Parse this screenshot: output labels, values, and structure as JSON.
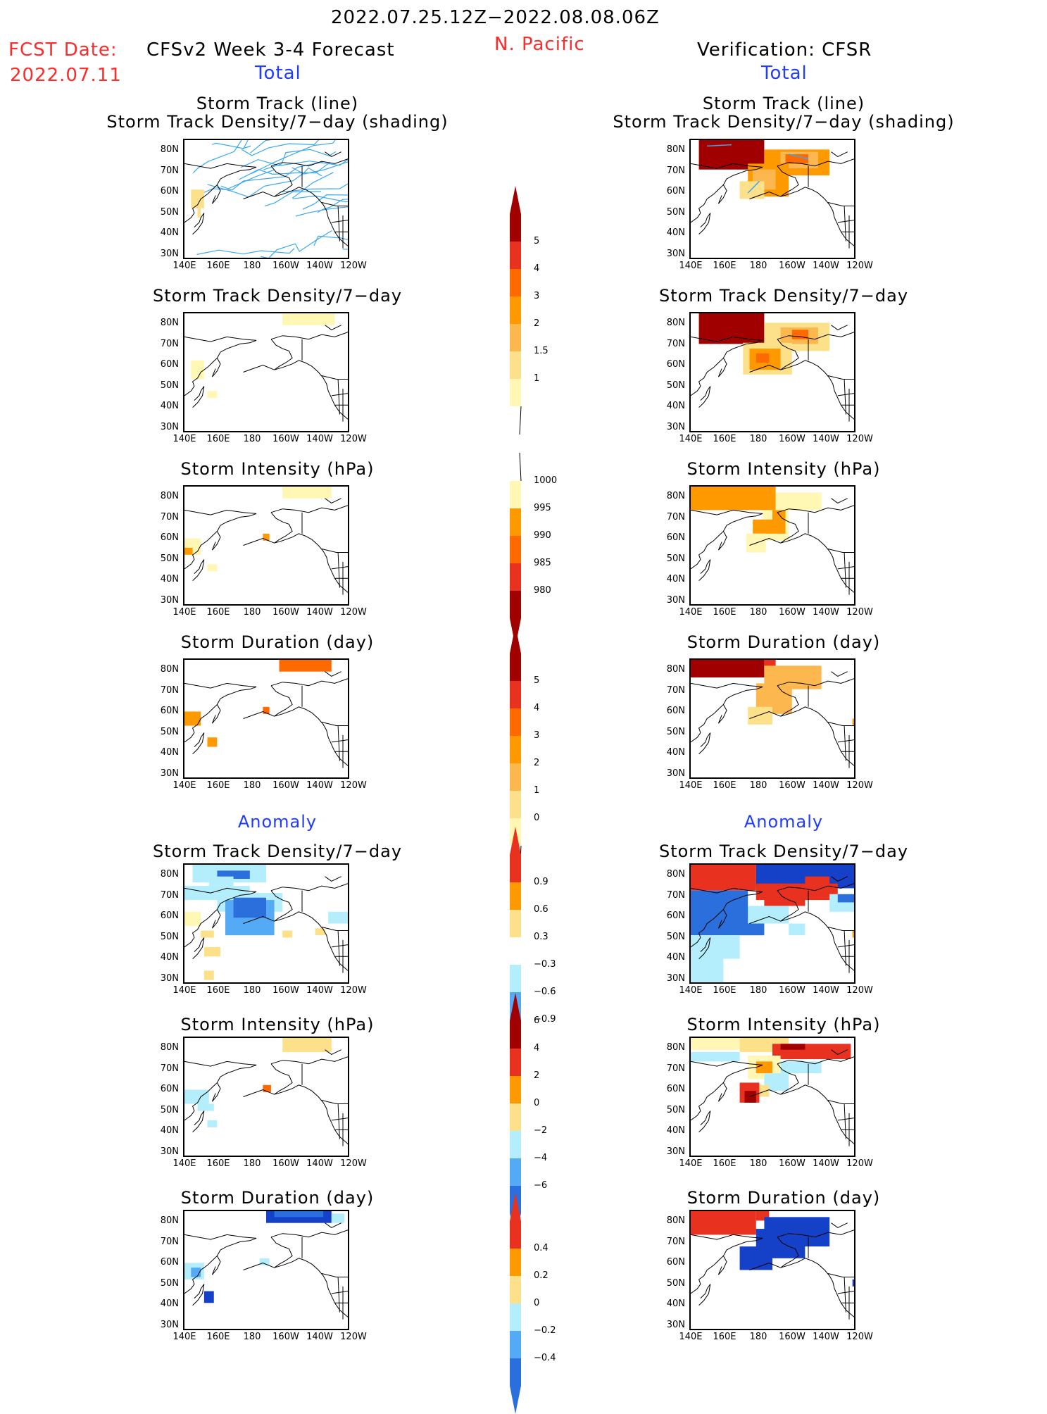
{
  "header": {
    "date_range": "2022.07.25.12Z−2022.08.08.06Z",
    "fcst_label": "FCST Date:",
    "fcst_date": "2022.07.11",
    "left_title": "CFSv2 Week 3-4 Forecast",
    "region": "N. Pacific",
    "right_title": "Verification: CFSR",
    "left_total": "Total",
    "right_total": "Total",
    "left_anomaly": "Anomaly",
    "right_anomaly": "Anomaly"
  },
  "axes": {
    "y_ticks": [
      "80N",
      "70N",
      "60N",
      "50N",
      "40N",
      "30N"
    ],
    "x_ticks": [
      "140E",
      "160E",
      "180",
      "160W",
      "140W",
      "120W"
    ]
  },
  "panels": {
    "left_track_title1": "Storm Track (line)",
    "left_track_title2": "Storm Track Density/7−day (shading)",
    "right_track_title1": "Storm Track (line)",
    "right_track_title2": "Storm Track Density/7−day (shading)",
    "left_density": "Storm Track Density/7−day",
    "right_density": "Storm Track Density/7−day",
    "left_intensity": "Storm Intensity (hPa)",
    "right_intensity": "Storm Intensity (hPa)",
    "left_duration": "Storm Duration (day)",
    "right_duration": "Storm Duration (day)",
    "left_density_anom": "Storm Track Density/7−day",
    "right_density_anom": "Storm Track Density/7−day",
    "left_intensity_anom": "Storm Intensity (hPa)",
    "right_intensity_anom": "Storm Intensity (hPa)",
    "left_duration_anom": "Storm Duration (day)",
    "right_duration_anom": "Storm Duration (day)"
  },
  "colorbars": {
    "density": [
      "5",
      "4",
      "3",
      "2",
      "1.5",
      "1"
    ],
    "intensity": [
      "1000",
      "995",
      "990",
      "985",
      "980"
    ],
    "duration": [
      "5",
      "4",
      "3",
      "2",
      "1",
      "0"
    ],
    "density_anom": [
      "0.9",
      "0.6",
      "0.3",
      "−0.3",
      "−0.6",
      "−0.9"
    ],
    "intensity_anom": [
      "6",
      "4",
      "2",
      "0",
      "−2",
      "−4",
      "−6"
    ],
    "duration_anom": [
      "0.4",
      "0.2",
      "0",
      "−0.2",
      "−0.4"
    ]
  },
  "colors": {
    "tan": "#fff7b3",
    "yellow": "#fde18a",
    "light_orange": "#fcb84f",
    "orange": "#fe9a00",
    "dark_orange": "#ff6a00",
    "red": "#e8311e",
    "dark_red": "#a10000",
    "light_blue": "#b4eefc",
    "mid_blue": "#55aaf5",
    "blue": "#2a6fdb",
    "dark_blue": "#1540c8",
    "track_line": "#3aa8f0"
  }
}
